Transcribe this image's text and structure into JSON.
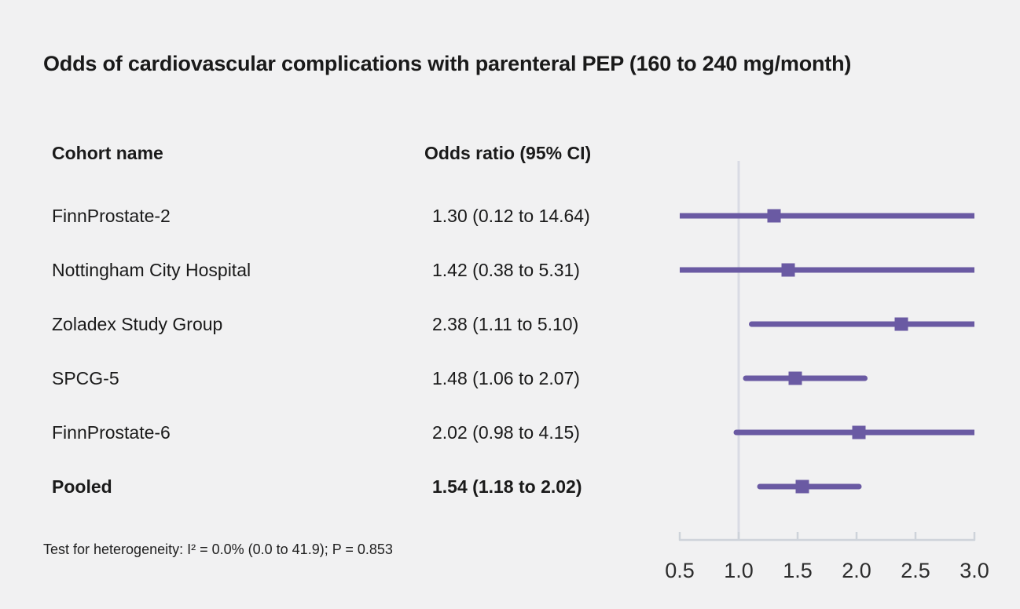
{
  "title": "Odds of cardiovascular complications with parenteral PEP (160 to 240 mg/month)",
  "table": {
    "col1_header": "Cohort name",
    "col2_header": "Odds ratio (95% CI)"
  },
  "footnote": "Test for heterogeneity: I² = 0.0% (0.0 to 41.9); P = 0.853",
  "colors": {
    "marker": "#6a5aa3",
    "ci_line": "#6a5aa3",
    "axis": "#ced3da",
    "reference_line": "#d9dbe4",
    "background": "#f1f1f2",
    "text": "#1a1a1a",
    "tick_label": "#2c2c2c"
  },
  "chart_data": {
    "type": "forest",
    "title": "Odds of cardiovascular complications with parenteral PEP (160 to 240 mg/month)",
    "columns": [
      "Cohort name",
      "Odds ratio (95% CI)"
    ],
    "rows": [
      {
        "name": "FinnProstate-2",
        "label": "1.30 (0.12 to 14.64)",
        "estimate": 1.3,
        "ci_low": 0.12,
        "ci_high": 14.64,
        "bold": false
      },
      {
        "name": "Nottingham City Hospital",
        "label": "1.42 (0.38 to 5.31)",
        "estimate": 1.42,
        "ci_low": 0.38,
        "ci_high": 5.31,
        "bold": false
      },
      {
        "name": "Zoladex Study Group",
        "label": "2.38 (1.11 to 5.10)",
        "estimate": 2.38,
        "ci_low": 1.11,
        "ci_high": 5.1,
        "bold": false
      },
      {
        "name": "SPCG-5",
        "label": "1.48 (1.06 to 2.07)",
        "estimate": 1.48,
        "ci_low": 1.06,
        "ci_high": 2.07,
        "bold": false
      },
      {
        "name": "FinnProstate-6",
        "label": "2.02 (0.98 to 4.15)",
        "estimate": 2.02,
        "ci_low": 0.98,
        "ci_high": 4.15,
        "bold": false
      },
      {
        "name": "Pooled",
        "label": "1.54 (1.18 to 2.02)",
        "estimate": 1.54,
        "ci_low": 1.18,
        "ci_high": 2.02,
        "bold": true
      }
    ],
    "xaxis": {
      "min": 0.5,
      "max": 3.0,
      "ticks": [
        0.5,
        1.0,
        1.5,
        2.0,
        2.5,
        3.0
      ],
      "tick_labels": [
        "0.5",
        "1.0",
        "1.5",
        "2.0",
        "2.5",
        "3.0"
      ],
      "reference_line": 1.0
    },
    "footnote": "Test for heterogeneity: I² = 0.0% (0.0 to 41.9); P = 0.853"
  }
}
